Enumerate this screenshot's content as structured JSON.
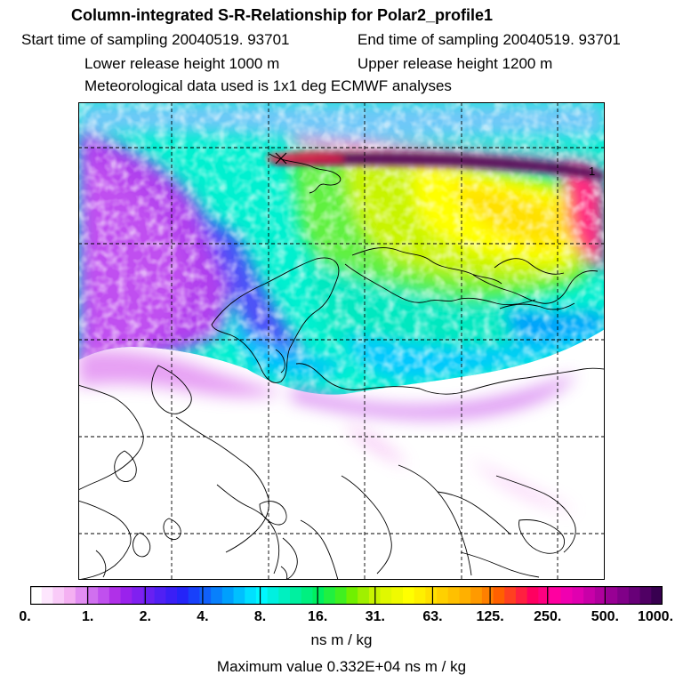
{
  "header": {
    "title": "Column-integrated S-R-Relationship for Polar2_profile1",
    "start_time": "Start time of sampling 20040519. 93701",
    "end_time": "End time of sampling 20040519. 93701",
    "lower_height": "Lower release height 1000 m",
    "upper_height": "Upper release height 1200 m",
    "met_data": "Meteorological data used is 1x1 deg ECMWF analyses"
  },
  "map": {
    "station_marker_label": "1",
    "grid_style": "dashed",
    "land_outline_color": "#000000"
  },
  "colorbar": {
    "tick_labels": [
      "0.",
      "1.",
      "2.",
      "4.",
      "8.",
      "16.",
      "31.",
      "63.",
      "125.",
      "250.",
      "500.",
      "1000."
    ],
    "units": "ns m / kg",
    "colors": [
      "#ffffff",
      "#fde6fd",
      "#f9cbf8",
      "#f4b0f2",
      "#e28ef2",
      "#d070ef",
      "#c050ee",
      "#b030e8",
      "#9a22ec",
      "#8020f0",
      "#6820f2",
      "#5020f4",
      "#3a1ff6",
      "#2424f8",
      "#1840fa",
      "#1060fb",
      "#0880fc",
      "#00a0fd",
      "#00c0fe",
      "#00e0ff",
      "#00f8ff",
      "#00f0e0",
      "#00f0c0",
      "#00f0a0",
      "#00f080",
      "#00f060",
      "#20f040",
      "#40f020",
      "#70f000",
      "#a0f000",
      "#c8f400",
      "#e0f800",
      "#f0fa00",
      "#ffff00",
      "#fff000",
      "#ffe000",
      "#ffd000",
      "#ffc000",
      "#ffb000",
      "#ff9a00",
      "#ff8000",
      "#ff6000",
      "#ff4020",
      "#ff2040",
      "#ff0060",
      "#ff0080",
      "#ff00a0",
      "#f000b0",
      "#e000b0",
      "#c800a8",
      "#b0009e",
      "#980094",
      "#800088",
      "#680078",
      "#500064",
      "#380050"
    ]
  },
  "footer": {
    "max_value": "Maximum value  0.332E+04 ns m / kg"
  }
}
